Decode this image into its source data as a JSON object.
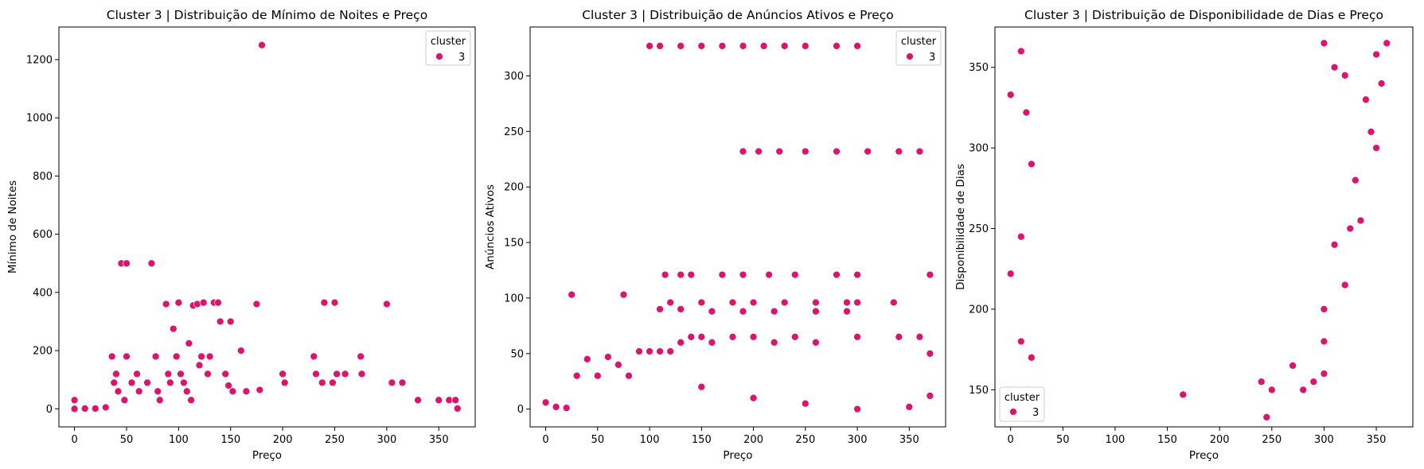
{
  "colors": {
    "point": "#dc146c",
    "point_edge": "#ffffff",
    "axis": "#000000"
  },
  "chart_data": [
    {
      "type": "scatter",
      "title": "Cluster 3 | Distribuição de Mínimo de Noites e Preço",
      "xlabel": "Preço",
      "ylabel": "Mínimo de Noites",
      "xlim": [
        -15,
        385
      ],
      "ylim": [
        -62,
        1312
      ],
      "xticks": [
        0,
        50,
        100,
        150,
        200,
        250,
        300,
        350
      ],
      "yticks": [
        0,
        200,
        400,
        600,
        800,
        1000,
        1200
      ],
      "legend": {
        "title": "cluster",
        "labels": [
          "3"
        ],
        "loc": "upper right"
      },
      "series": [
        {
          "name": "3",
          "points": [
            [
              0,
              0
            ],
            [
              0,
              30
            ],
            [
              10,
              1
            ],
            [
              20,
              1
            ],
            [
              30,
              5
            ],
            [
              36,
              180
            ],
            [
              38,
              90
            ],
            [
              40,
              120
            ],
            [
              42,
              60
            ],
            [
              45,
              500
            ],
            [
              48,
              30
            ],
            [
              50,
              500
            ],
            [
              50,
              180
            ],
            [
              55,
              90
            ],
            [
              60,
              120
            ],
            [
              62,
              60
            ],
            [
              70,
              90
            ],
            [
              74,
              500
            ],
            [
              78,
              180
            ],
            [
              80,
              60
            ],
            [
              82,
              30
            ],
            [
              88,
              360
            ],
            [
              90,
              120
            ],
            [
              92,
              90
            ],
            [
              95,
              275
            ],
            [
              98,
              180
            ],
            [
              100,
              365
            ],
            [
              102,
              120
            ],
            [
              105,
              90
            ],
            [
              108,
              60
            ],
            [
              110,
              225
            ],
            [
              112,
              30
            ],
            [
              114,
              355
            ],
            [
              118,
              360
            ],
            [
              120,
              150
            ],
            [
              122,
              180
            ],
            [
              124,
              365
            ],
            [
              128,
              120
            ],
            [
              130,
              180
            ],
            [
              134,
              365
            ],
            [
              138,
              365
            ],
            [
              140,
              300
            ],
            [
              145,
              120
            ],
            [
              148,
              80
            ],
            [
              150,
              300
            ],
            [
              152,
              60
            ],
            [
              160,
              200
            ],
            [
              165,
              60
            ],
            [
              175,
              360
            ],
            [
              178,
              65
            ],
            [
              180,
              1250
            ],
            [
              200,
              120
            ],
            [
              202,
              90
            ],
            [
              230,
              180
            ],
            [
              232,
              120
            ],
            [
              238,
              90
            ],
            [
              240,
              365
            ],
            [
              248,
              90
            ],
            [
              250,
              365
            ],
            [
              252,
              120
            ],
            [
              260,
              120
            ],
            [
              275,
              180
            ],
            [
              276,
              120
            ],
            [
              300,
              360
            ],
            [
              305,
              90
            ],
            [
              315,
              90
            ],
            [
              330,
              30
            ],
            [
              350,
              30
            ],
            [
              360,
              30
            ],
            [
              366,
              30
            ],
            [
              368,
              1
            ]
          ]
        }
      ]
    },
    {
      "type": "scatter",
      "title": "Cluster 3 | Distribuição de Anúncios Ativos e Preço",
      "xlabel": "Preço",
      "ylabel": "Anúncios Ativos",
      "xlim": [
        -15,
        385
      ],
      "ylim": [
        -16,
        344
      ],
      "xticks": [
        0,
        50,
        100,
        150,
        200,
        250,
        300,
        350
      ],
      "yticks": [
        0,
        50,
        100,
        150,
        200,
        250,
        300
      ],
      "legend": {
        "title": "cluster",
        "labels": [
          "3"
        ],
        "loc": "upper right"
      },
      "series": [
        {
          "name": "3",
          "points": [
            [
              0,
              6
            ],
            [
              10,
              2
            ],
            [
              20,
              1
            ],
            [
              25,
              103
            ],
            [
              75,
              103
            ],
            [
              30,
              30
            ],
            [
              40,
              45
            ],
            [
              50,
              30
            ],
            [
              60,
              47
            ],
            [
              70,
              40
            ],
            [
              80,
              30
            ],
            [
              90,
              52
            ],
            [
              100,
              52
            ],
            [
              110,
              52
            ],
            [
              120,
              52
            ],
            [
              130,
              60
            ],
            [
              140,
              65
            ],
            [
              150,
              65
            ],
            [
              160,
              60
            ],
            [
              180,
              65
            ],
            [
              200,
              65
            ],
            [
              220,
              60
            ],
            [
              240,
              65
            ],
            [
              260,
              60
            ],
            [
              300,
              65
            ],
            [
              340,
              65
            ],
            [
              360,
              65
            ],
            [
              370,
              50
            ],
            [
              370,
              12
            ],
            [
              100,
              327
            ],
            [
              110,
              327
            ],
            [
              130,
              327
            ],
            [
              150,
              327
            ],
            [
              170,
              327
            ],
            [
              190,
              327
            ],
            [
              210,
              327
            ],
            [
              230,
              327
            ],
            [
              250,
              327
            ],
            [
              280,
              327
            ],
            [
              300,
              327
            ],
            [
              190,
              232
            ],
            [
              205,
              232
            ],
            [
              225,
              232
            ],
            [
              250,
              232
            ],
            [
              280,
              232
            ],
            [
              310,
              232
            ],
            [
              340,
              232
            ],
            [
              360,
              232
            ],
            [
              115,
              121
            ],
            [
              130,
              121
            ],
            [
              140,
              121
            ],
            [
              170,
              121
            ],
            [
              190,
              121
            ],
            [
              215,
              121
            ],
            [
              240,
              121
            ],
            [
              280,
              121
            ],
            [
              300,
              121
            ],
            [
              370,
              121
            ],
            [
              120,
              96
            ],
            [
              150,
              96
            ],
            [
              180,
              96
            ],
            [
              200,
              96
            ],
            [
              230,
              96
            ],
            [
              260,
              96
            ],
            [
              290,
              96
            ],
            [
              300,
              96
            ],
            [
              335,
              96
            ],
            [
              110,
              90
            ],
            [
              130,
              90
            ],
            [
              160,
              88
            ],
            [
              190,
              88
            ],
            [
              220,
              88
            ],
            [
              260,
              88
            ],
            [
              290,
              88
            ],
            [
              150,
              20
            ],
            [
              200,
              10
            ],
            [
              250,
              5
            ],
            [
              300,
              0
            ],
            [
              350,
              2
            ]
          ]
        }
      ]
    },
    {
      "type": "scatter",
      "title": "Cluster 3 | Distribuição de Disponibilidade de Dias e Preço",
      "xlabel": "Preço",
      "ylabel": "Disponibilidade de Dias",
      "xlim": [
        -15,
        385
      ],
      "ylim": [
        127,
        375
      ],
      "xticks": [
        0,
        50,
        100,
        150,
        200,
        250,
        300,
        350
      ],
      "yticks": [
        150,
        200,
        250,
        300,
        350
      ],
      "legend": {
        "title": "cluster",
        "labels": [
          "3"
        ],
        "loc": "lower left"
      },
      "series": [
        {
          "name": "3",
          "points": [
            [
              0,
              333
            ],
            [
              0,
              222
            ],
            [
              10,
              245
            ],
            [
              10,
              180
            ],
            [
              10,
              360
            ],
            [
              15,
              322
            ],
            [
              20,
              290
            ],
            [
              20,
              170
            ],
            [
              245,
              133
            ],
            [
              165,
              147
            ],
            [
              300,
              160
            ],
            [
              300,
              180
            ],
            [
              360,
              365
            ],
            [
              350,
              358
            ],
            [
              355,
              340
            ],
            [
              340,
              330
            ],
            [
              345,
              310
            ],
            [
              350,
              300
            ],
            [
              330,
              280
            ],
            [
              335,
              255
            ],
            [
              325,
              250
            ],
            [
              320,
              215
            ],
            [
              310,
              240
            ],
            [
              300,
              200
            ],
            [
              250,
              150
            ],
            [
              270,
              165
            ],
            [
              280,
              150
            ],
            [
              290,
              155
            ],
            [
              240,
              155
            ],
            [
              300,
              365
            ],
            [
              310,
              350
            ],
            [
              320,
              345
            ]
          ]
        }
      ]
    }
  ]
}
